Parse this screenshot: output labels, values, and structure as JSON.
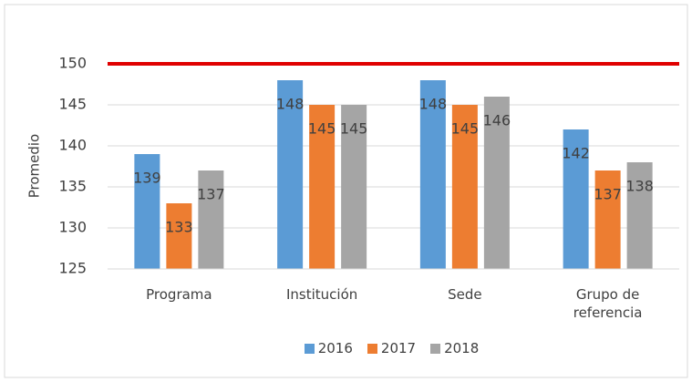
{
  "chart_data": {
    "type": "bar",
    "y_label": "Promedio",
    "categories": [
      "Programa",
      "Institución",
      "Sede",
      "Grupo de referencia"
    ],
    "series": [
      {
        "name": "2016",
        "color": "#5b9bd5",
        "values": [
          139,
          148,
          148,
          142
        ]
      },
      {
        "name": "2017",
        "color": "#ed7d31",
        "values": [
          133,
          145,
          145,
          137
        ]
      },
      {
        "name": "2018",
        "color": "#a5a5a5",
        "values": [
          137,
          145,
          146,
          138
        ]
      }
    ],
    "ylim": [
      125,
      150
    ],
    "yticks": [
      125,
      130,
      135,
      140,
      145,
      150
    ],
    "grid": true,
    "reference_line": {
      "value": 150,
      "color": "#e00000"
    },
    "legend": "bottom"
  }
}
